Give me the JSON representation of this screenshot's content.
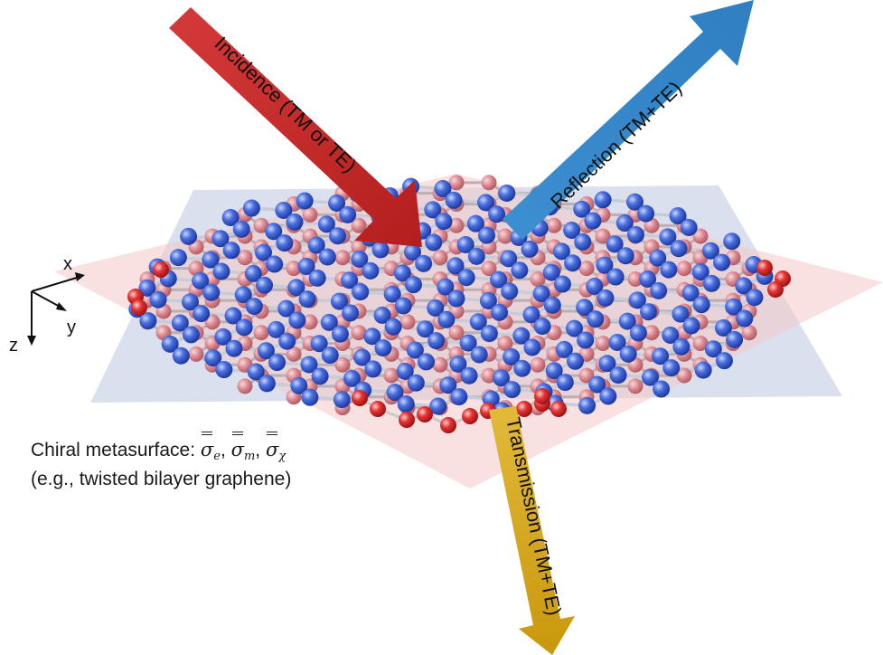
{
  "axes": {
    "x": "x",
    "y": "y",
    "z": "z"
  },
  "arrows": {
    "incidence": "Incidence (TM or TE)",
    "reflection": "Reflection (TM+TE)",
    "transmission": "Transmission (TM+TE)"
  },
  "caption": {
    "line1_prefix": "Chiral metasurface: ",
    "sigma": "σ",
    "sub_e": "e",
    "sub_m": "m",
    "sub_chi": "χ",
    "separator": ", ",
    "line2": "(e.g., twisted bilayer graphene)"
  },
  "colors": {
    "incidence": "#cc2a2a",
    "reflection": "#3a8ac8",
    "transmission": "#d4a91a",
    "atom_blue": "#3a5fd6",
    "atom_red": "#e03030",
    "plane_blue": "#cfd6ea",
    "plane_red": "#f3c2c2"
  }
}
